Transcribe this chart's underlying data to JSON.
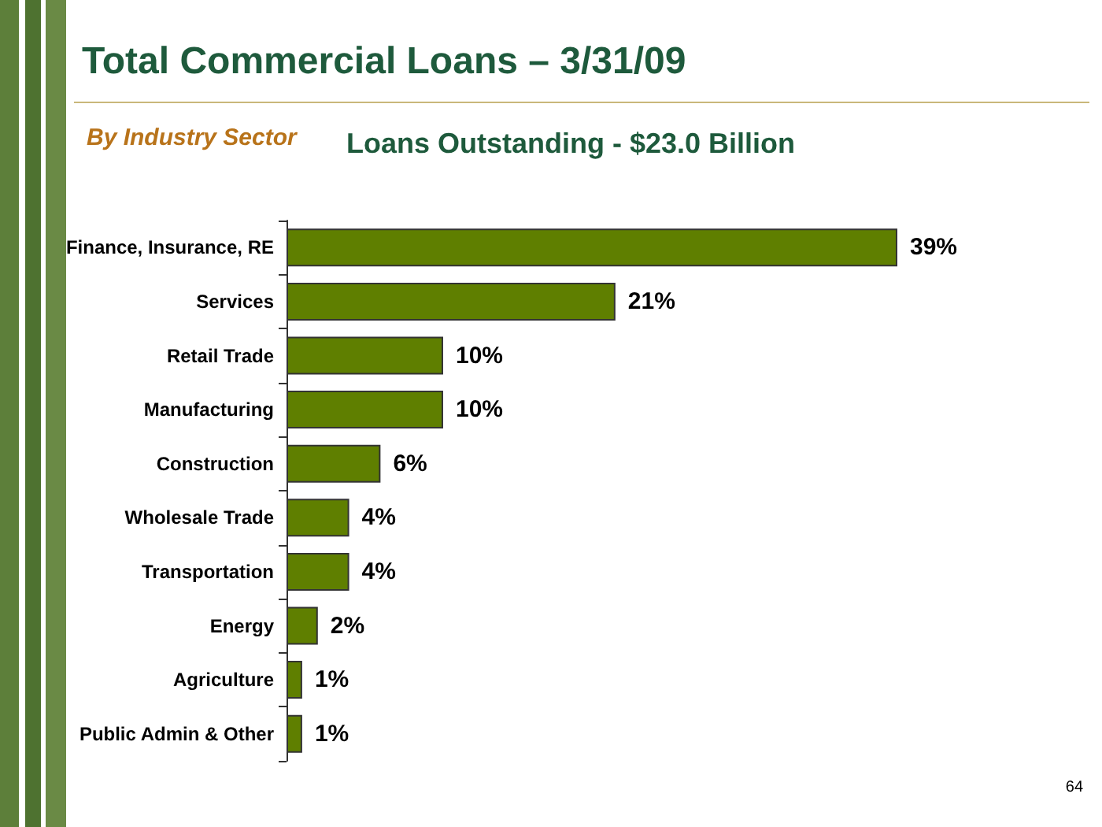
{
  "chart_data": {
    "type": "bar",
    "orientation": "horizontal",
    "title": "Total Commercial Loans – 3/31/09",
    "subtitle": "Loans Outstanding - $23.0 Billion",
    "annotations": [
      "By Industry Sector",
      "64"
    ],
    "categories": [
      "Finance, Insurance, RE",
      "Services",
      "Retail Trade",
      "Manufacturing",
      "Construction",
      "Wholesale Trade",
      "Transportation",
      "Energy",
      "Agriculture",
      "Public Admin & Other"
    ],
    "values": [
      39,
      21,
      10,
      10,
      6,
      4,
      4,
      2,
      1,
      1
    ],
    "value_labels": [
      "39%",
      "21%",
      "10%",
      "10%",
      "6%",
      "4%",
      "4%",
      "2%",
      "1%",
      "1%"
    ],
    "color": "#5f7f00"
  }
}
